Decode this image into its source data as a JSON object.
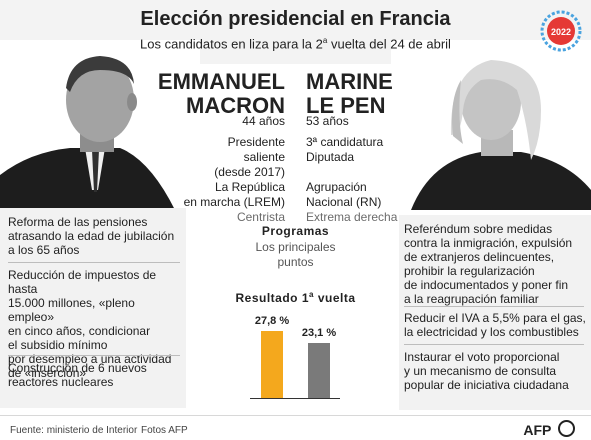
{
  "header": {
    "title": "Elección presidencial en Francia",
    "subtitle": "Los candidatos en liza para la 2",
    "subtitle_sup": "a",
    "subtitle_end": "vuelta del 24 de abril",
    "badge_year": "2022"
  },
  "candidates": {
    "macron": {
      "first": "EMMANUEL",
      "last": "MACRON",
      "age": "44 años",
      "role1": "Presidente",
      "role2": "saliente",
      "role3": "(desde 2017)",
      "party1": "La República",
      "party2": "en marcha (LREM)",
      "orientation": "Centrista"
    },
    "lepen": {
      "first": "MARINE",
      "last": "LE PEN",
      "age": "53 años",
      "role1": "3ª candidatura",
      "role2": "Diputada",
      "party1": "Agrupación",
      "party2": "Nacional (RN)",
      "orientation": "Extrema derecha"
    }
  },
  "programs": {
    "title": "Programas",
    "subtitle1": "Los principales",
    "subtitle2": "puntos",
    "macron_points": [
      [
        "Reforma de las pensiones",
        "atrasando la edad de jubilación",
        "a los 65 años"
      ],
      [
        "Reducción de impuestos de hasta",
        "15.000 millones, «pleno empleo»",
        "en cinco años, condicionar",
        "el subsidio mínimo",
        "por desempleo a una actividad",
        "de «inserción»"
      ],
      [
        "Construcción de 6 nuevos",
        "reactores nucleares"
      ]
    ],
    "lepen_points": [
      [
        "Referéndum sobre medidas",
        "contra la inmigración, expulsión",
        "de extranjeros delincuentes,",
        "prohibir la regularización",
        "de indocumentados y poner fin",
        "a la reagrupación familiar"
      ],
      [
        "Reducir el IVA a 5,5% para el gas,",
        "la electricidad y los combustibles"
      ],
      [
        "Instaurar el voto proporcional",
        "y un mecanismo de consulta",
        "popular de iniciativa ciudadana"
      ]
    ]
  },
  "results": {
    "title": "Resultado 1",
    "title_sup": "a",
    "title_end": "vuelta"
  },
  "chart_data": {
    "type": "bar",
    "categories": [
      "",
      ""
    ],
    "values": [
      27.8,
      23.1
    ],
    "labels": [
      "27,8 %",
      "23,1 %"
    ],
    "colors": [
      "#f4a81d",
      "#7a7a7a"
    ],
    "title": "Resultado 1ª vuelta",
    "ylim": [
      0,
      30
    ]
  },
  "footer": {
    "source": "Fuente: ministerio de Interior",
    "photos": "Fotos AFP",
    "logo": "AFP"
  },
  "colors": {
    "accent_red": "#e53935",
    "macron_bar": "#f4a81d",
    "lepen_bar": "#7a7a7a"
  }
}
